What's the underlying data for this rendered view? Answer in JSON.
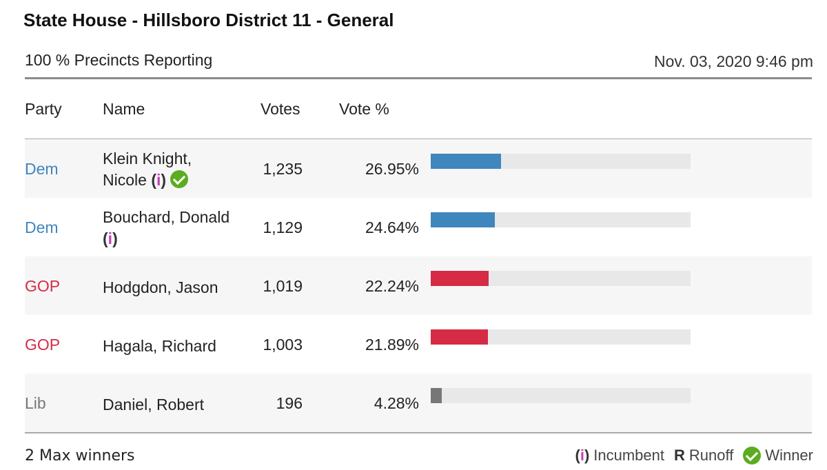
{
  "header": {
    "title": "State House - Hillsboro District 11 - General",
    "reporting": "100 % Precincts Reporting",
    "timestamp": "Nov. 03, 2020 9:46 pm"
  },
  "columns": {
    "party": "Party",
    "name": "Name",
    "votes": "Votes",
    "pct": "Vote %"
  },
  "colors": {
    "Dem": "#3f86bd",
    "GOP": "#d52b45",
    "Lib": "#777777",
    "bar_Dem": "#3f86bd",
    "bar_GOP": "#d52b45",
    "bar_Lib": "#777777",
    "incumbent": "#c83bbd",
    "winner": "#5aad1f"
  },
  "rows": [
    {
      "party": "Dem",
      "name_line1": "Klein Knight,",
      "name_line2": "Nicole",
      "incumbent": true,
      "winner": true,
      "votes": "1,235",
      "pct": "26.95%",
      "share": 26.95
    },
    {
      "party": "Dem",
      "name_line1": "Bouchard, Donald",
      "name_line2": "",
      "incumbent": true,
      "winner": false,
      "votes": "1,129",
      "pct": "24.64%",
      "share": 24.64
    },
    {
      "party": "GOP",
      "name_line1": "Hodgdon, Jason",
      "name_line2": "",
      "incumbent": false,
      "winner": false,
      "votes": "1,019",
      "pct": "22.24%",
      "share": 22.24
    },
    {
      "party": "GOP",
      "name_line1": "Hagala, Richard",
      "name_line2": "",
      "incumbent": false,
      "winner": false,
      "votes": "1,003",
      "pct": "21.89%",
      "share": 21.89
    },
    {
      "party": "Lib",
      "name_line1": "Daniel, Robert",
      "name_line2": "",
      "incumbent": false,
      "winner": false,
      "votes": "196",
      "pct": "4.28%",
      "share": 4.28
    }
  ],
  "footer": {
    "max_winners": "2 Max winners",
    "incumbent_symbol": "i",
    "incumbent_label": "Incumbent",
    "runoff_symbol": "R",
    "runoff_label": "Runoff",
    "winner_label": "Winner"
  }
}
